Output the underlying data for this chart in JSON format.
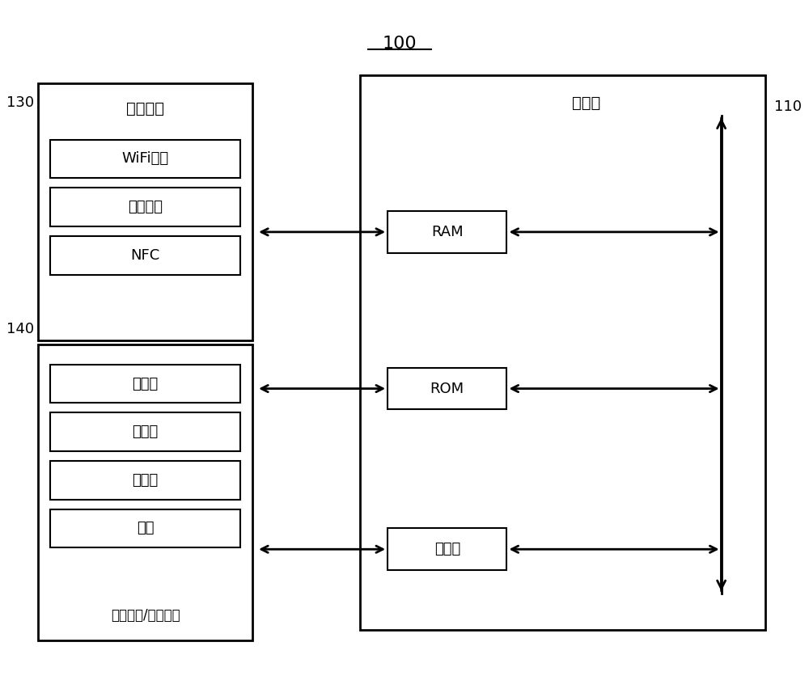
{
  "title": "100",
  "bg_color": "#ffffff",
  "line_color": "#000000",
  "label_130": "130",
  "label_140": "140",
  "label_110": "110",
  "comm_interface_title": "通信接口",
  "comm_items": [
    "WiFi芯片",
    "蓝牙模块",
    "NFC"
  ],
  "user_io_title": "用户输入/输出接口",
  "user_items": [
    "麦克风",
    "触摸板",
    "传感器",
    "按键"
  ],
  "controller_title": "控制器",
  "controller_items": [
    "RAM",
    "ROM",
    "处理器"
  ]
}
